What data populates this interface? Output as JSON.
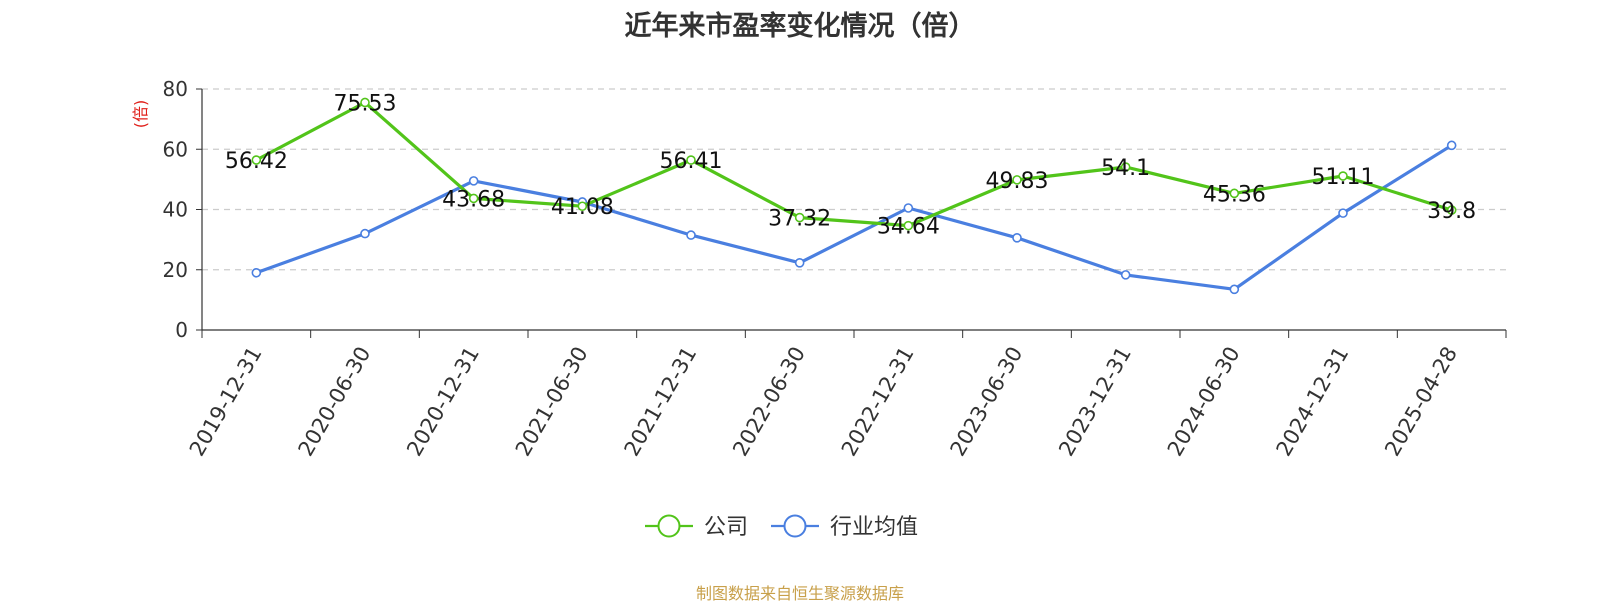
{
  "title": "近年来市盈率变化情况（倍）",
  "footer": "制图数据来自恒生聚源数据库",
  "colors": {
    "company": "#52c41a",
    "industry": "#4a7fe0",
    "ylabel": "#e0201a",
    "grid": "#cccccc",
    "axis": "#333333"
  },
  "chart_data": {
    "type": "line",
    "title": "近年来市盈率变化情况（倍）",
    "ylabel": "(倍)",
    "xlabel": "",
    "ylim": [
      0,
      80
    ],
    "yticks": [
      0,
      20,
      40,
      60,
      80
    ],
    "grid": true,
    "legend_position": "bottom-center",
    "categories": [
      "2019-12-31",
      "2020-06-30",
      "2020-12-31",
      "2021-06-30",
      "2021-12-31",
      "2022-06-30",
      "2022-12-31",
      "2023-06-30",
      "2023-12-31",
      "2024-06-30",
      "2024-12-31",
      "2025-04-28"
    ],
    "series": [
      {
        "name": "公司",
        "values": [
          56.42,
          75.53,
          43.68,
          41.08,
          56.41,
          37.32,
          34.64,
          49.83,
          54.1,
          45.36,
          51.11,
          39.8
        ],
        "labels": [
          "56.42",
          "75.53",
          "43.68",
          "41.08",
          "56.41",
          "37.32",
          "34.64",
          "49.83",
          "54.1",
          "45.36",
          "51.11",
          "39.8"
        ],
        "color": "#52c41a"
      },
      {
        "name": "行业均值",
        "values": [
          19,
          32,
          49.5,
          42.5,
          31.5,
          22.3,
          40.5,
          30.6,
          18.3,
          13.5,
          38.8,
          61.3
        ],
        "color": "#4a7fe0"
      }
    ]
  }
}
